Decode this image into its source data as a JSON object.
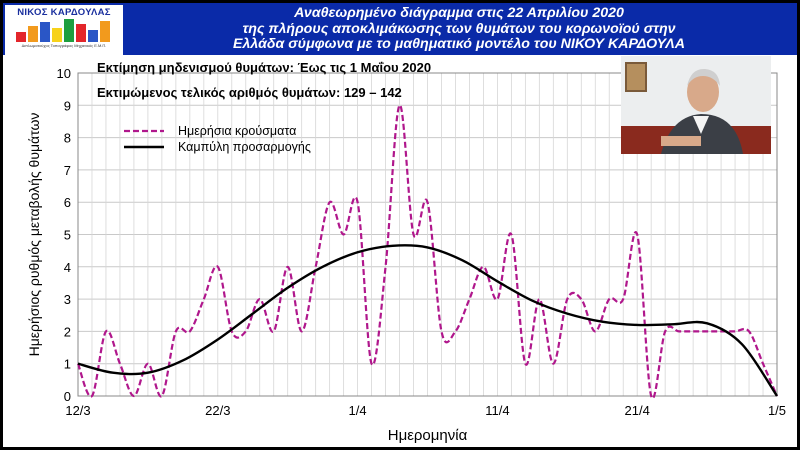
{
  "header": {
    "logo_name": "ΝΙΚΟΣ ΚΑΡΔΟΥΛΑΣ",
    "logo_sub": "Διπλωματούχος Τοπογράφος Μηχανικός Ε.Μ.Π.",
    "title_lines": [
      "Αναθεωρημένο διάγραμμα στις 22 Απριλίου 2020",
      "της πλήρους αποκλιμάκωσης των θυμάτων του κορωνοϊού στην",
      "Ελλάδα σύμφωνα με το μαθηματικό μοντέλο του ΝΙΚΟΥ ΚΑΡΔΟΥΛΑ"
    ]
  },
  "annotations": {
    "line1": "Εκτίμηση μηδενισμού θυμάτων: Έως τις 1 Μαΐου 2020",
    "line2": "Εκτιμώμενος τελικός αριθμός θυμάτων: 129 – 142"
  },
  "colors": {
    "header_bg": "#0a2aa8",
    "series_daily": "#b0178c",
    "series_fit": "#000000"
  },
  "chart_data": {
    "type": "line",
    "xlabel": "Ημερομηνία",
    "ylabel": "Ημερήσιος ρυθμός μεταβολής θυμάτων",
    "x_tick_labels": [
      "12/3",
      "22/3",
      "1/4",
      "11/4",
      "21/4",
      "1/5"
    ],
    "xlim": [
      0,
      50
    ],
    "ylim": [
      0,
      10
    ],
    "y_ticks": [
      0,
      1,
      2,
      3,
      4,
      5,
      6,
      7,
      8,
      9,
      10
    ],
    "grid": true,
    "legend": "top-left",
    "series": [
      {
        "name": "Ημερήσια κρούσματα",
        "style": "dashed",
        "x": [
          0,
          1,
          2,
          3,
          4,
          5,
          6,
          7,
          8,
          9,
          10,
          11,
          12,
          13,
          14,
          15,
          16,
          17,
          18,
          19,
          20,
          21,
          22,
          23,
          24,
          25,
          26,
          27,
          28,
          29,
          30,
          31,
          32,
          33,
          34,
          35,
          36,
          37,
          38,
          39,
          40,
          41,
          42,
          43,
          44,
          45,
          46,
          47,
          48,
          49,
          50
        ],
        "values": [
          1,
          0,
          2,
          1,
          0,
          1,
          0,
          2,
          2,
          3,
          4,
          2,
          2,
          3,
          2,
          4,
          2,
          4,
          6,
          5,
          6,
          1,
          4,
          9,
          5,
          6,
          2,
          2,
          3,
          4,
          3,
          5,
          1,
          3,
          1,
          3,
          3,
          2,
          3,
          3,
          5,
          0,
          2,
          2,
          2,
          2,
          2,
          2,
          2,
          1,
          0
        ]
      },
      {
        "name": "Καμπύλη προσαρμογής",
        "style": "solid",
        "x": [
          0,
          2.5,
          5,
          7.5,
          10,
          12.5,
          15,
          17.5,
          20,
          22.5,
          25,
          27.5,
          30,
          32.5,
          35,
          37.5,
          40,
          42.5,
          45,
          47.5,
          50
        ],
        "values": [
          1.0,
          0.72,
          0.72,
          1.1,
          1.75,
          2.55,
          3.35,
          4.0,
          4.45,
          4.65,
          4.6,
          4.2,
          3.55,
          2.95,
          2.55,
          2.3,
          2.2,
          2.22,
          2.25,
          1.6,
          0.0
        ]
      }
    ]
  }
}
